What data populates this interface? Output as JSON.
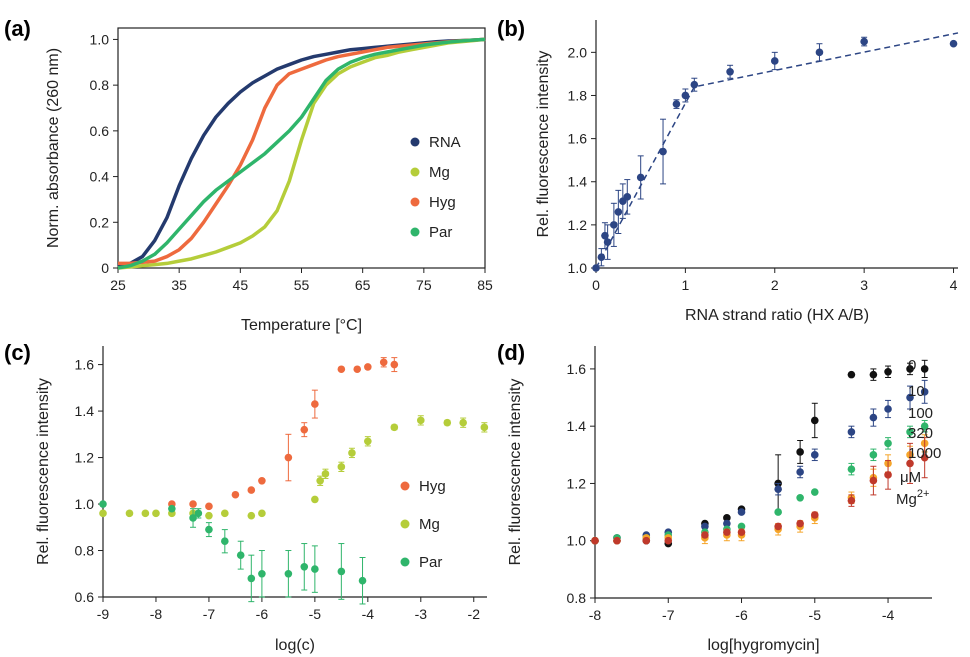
{
  "chart_data": [
    {
      "panel": "(a)",
      "type": "line",
      "xlabel": "Temperature [°C]",
      "ylabel": "Norm. absorbance (260 nm)",
      "xlim": [
        25,
        85
      ],
      "ylim": [
        0,
        1.05
      ],
      "xticks": [
        25,
        35,
        45,
        55,
        65,
        75,
        85
      ],
      "yticks": [
        0,
        0.2,
        0.4,
        0.6,
        0.8,
        1.0
      ],
      "ytick_labels": [
        "0",
        "0.2",
        "0.4",
        "0.6",
        "0.8",
        "1.0"
      ],
      "grid": false,
      "legend_position": "right",
      "series": [
        {
          "name": "RNA",
          "color": "#243a6e",
          "x": [
            25,
            27,
            29,
            31,
            33,
            35,
            37,
            39,
            41,
            43,
            45,
            47,
            49,
            51,
            53,
            55,
            57,
            59,
            61,
            63,
            65,
            67,
            69,
            71,
            73,
            75,
            77,
            79,
            81,
            83,
            85
          ],
          "y": [
            0.01,
            0.02,
            0.05,
            0.12,
            0.22,
            0.36,
            0.48,
            0.58,
            0.66,
            0.72,
            0.77,
            0.81,
            0.84,
            0.87,
            0.89,
            0.91,
            0.925,
            0.935,
            0.945,
            0.955,
            0.96,
            0.965,
            0.97,
            0.975,
            0.98,
            0.985,
            0.99,
            0.993,
            0.995,
            0.997,
            1.0
          ]
        },
        {
          "name": "Mg",
          "color": "#b5cd3a",
          "x": [
            25,
            27,
            29,
            31,
            33,
            35,
            37,
            39,
            41,
            43,
            45,
            47,
            49,
            51,
            53,
            55,
            57,
            59,
            61,
            63,
            65,
            67,
            69,
            71,
            73,
            75,
            77,
            79,
            81,
            83,
            85
          ],
          "y": [
            0.0,
            0.005,
            0.01,
            0.015,
            0.02,
            0.03,
            0.04,
            0.055,
            0.07,
            0.09,
            0.11,
            0.14,
            0.18,
            0.25,
            0.38,
            0.56,
            0.72,
            0.8,
            0.85,
            0.88,
            0.9,
            0.92,
            0.93,
            0.945,
            0.955,
            0.965,
            0.975,
            0.985,
            0.99,
            0.995,
            1.0
          ]
        },
        {
          "name": "Hyg",
          "color": "#ee6a3e",
          "x": [
            25,
            27,
            29,
            31,
            33,
            35,
            37,
            39,
            41,
            43,
            45,
            47,
            49,
            51,
            53,
            55,
            57,
            59,
            61,
            63,
            65,
            67,
            69,
            71,
            73,
            75,
            77,
            79,
            81,
            83,
            85
          ],
          "y": [
            0.02,
            0.02,
            0.025,
            0.03,
            0.05,
            0.08,
            0.13,
            0.2,
            0.28,
            0.36,
            0.45,
            0.56,
            0.7,
            0.8,
            0.85,
            0.87,
            0.89,
            0.91,
            0.925,
            0.935,
            0.945,
            0.955,
            0.965,
            0.97,
            0.975,
            0.98,
            0.985,
            0.99,
            0.994,
            0.997,
            1.0
          ]
        },
        {
          "name": "Par",
          "color": "#2fb56b",
          "x": [
            25,
            27,
            29,
            31,
            33,
            35,
            37,
            39,
            41,
            43,
            45,
            47,
            49,
            51,
            53,
            55,
            57,
            59,
            61,
            63,
            65,
            67,
            69,
            71,
            73,
            75,
            77,
            79,
            81,
            83,
            85
          ],
          "y": [
            0.0,
            0.01,
            0.03,
            0.06,
            0.11,
            0.17,
            0.23,
            0.29,
            0.34,
            0.38,
            0.42,
            0.46,
            0.5,
            0.55,
            0.6,
            0.66,
            0.74,
            0.82,
            0.87,
            0.9,
            0.92,
            0.935,
            0.945,
            0.955,
            0.965,
            0.975,
            0.982,
            0.988,
            0.993,
            0.997,
            1.0
          ]
        }
      ]
    },
    {
      "panel": "(b)",
      "type": "scatter",
      "xlabel": "RNA strand ratio (HX A/B)",
      "ylabel": "Rel. fluorescence intensity",
      "xlim": [
        0,
        4.05
      ],
      "ylim": [
        1.0,
        2.15
      ],
      "xticks": [
        0,
        1,
        2,
        3,
        4
      ],
      "yticks": [
        1.0,
        1.2,
        1.4,
        1.6,
        1.8,
        2.0
      ],
      "ytick_labels": [
        "1.0",
        "1.2",
        "1.4",
        "1.6",
        "1.8",
        "2.0"
      ],
      "grid": false,
      "series": [
        {
          "name": "",
          "color": "#2c4584",
          "x": [
            0,
            0.06,
            0.1,
            0.13,
            0.2,
            0.25,
            0.3,
            0.35,
            0.5,
            0.75,
            0.9,
            1.0,
            1.1,
            1.5,
            2.0,
            2.5,
            3.0,
            4.0
          ],
          "y": [
            1.0,
            1.05,
            1.15,
            1.12,
            1.2,
            1.26,
            1.31,
            1.33,
            1.42,
            1.54,
            1.76,
            1.8,
            1.85,
            1.91,
            1.96,
            2.0,
            2.05,
            2.04
          ],
          "err": [
            0,
            0.04,
            0.06,
            0.08,
            0.1,
            0.1,
            0.08,
            0.08,
            0.1,
            0.15,
            0.02,
            0.03,
            0.03,
            0.03,
            0.04,
            0.04,
            0.02,
            0
          ]
        }
      ],
      "fit_line": {
        "x": [
          0,
          1.1,
          4.05
        ],
        "y": [
          1.0,
          1.84,
          2.09
        ]
      }
    },
    {
      "panel": "(c)",
      "type": "scatter",
      "xlabel": "log(c)",
      "ylabel": "Rel. fluorescence intensity",
      "xlim": [
        -9,
        -1.75
      ],
      "ylim": [
        0.6,
        1.68
      ],
      "xticks": [
        -9,
        -8,
        -7,
        -6,
        -5,
        -4,
        -3,
        -2
      ],
      "yticks": [
        0.6,
        0.8,
        1.0,
        1.2,
        1.4,
        1.6
      ],
      "ytick_labels": [
        "0.6",
        "0.8",
        "1.0",
        "1.2",
        "1.4",
        "1.6"
      ],
      "grid": false,
      "legend_position": "right",
      "series": [
        {
          "name": "Hyg",
          "color": "#ee6a3e",
          "x": [
            -7.7,
            -7.3,
            -7.0,
            -6.5,
            -6.2,
            -6.0,
            -5.5,
            -5.2,
            -5.0,
            -4.5,
            -4.2,
            -4.0,
            -3.7,
            -3.5
          ],
          "y": [
            1.0,
            1.0,
            0.99,
            1.04,
            1.06,
            1.1,
            1.2,
            1.32,
            1.43,
            1.58,
            1.58,
            1.59,
            1.61,
            1.6
          ],
          "err": [
            0,
            0,
            0,
            0,
            0,
            0,
            0.1,
            0.03,
            0.06,
            0,
            0,
            0,
            0.02,
            0.03
          ]
        },
        {
          "name": "Mg",
          "color": "#b5cd3a",
          "x": [
            -9.0,
            -8.5,
            -8.2,
            -8.0,
            -7.7,
            -7.3,
            -7.0,
            -6.7,
            -6.2,
            -6.0,
            -5.0,
            -4.9,
            -4.8,
            -4.5,
            -4.3,
            -4.0,
            -3.5,
            -3.0,
            -2.5,
            -2.2,
            -1.8
          ],
          "y": [
            0.96,
            0.96,
            0.96,
            0.96,
            0.96,
            0.96,
            0.95,
            0.96,
            0.95,
            0.96,
            1.02,
            1.1,
            1.13,
            1.16,
            1.22,
            1.27,
            1.33,
            1.36,
            1.35,
            1.35,
            1.33
          ],
          "err": [
            0,
            0,
            0,
            0,
            0,
            0,
            0,
            0,
            0,
            0,
            0,
            0.02,
            0.02,
            0.02,
            0.02,
            0.02,
            0.01,
            0.02,
            0.01,
            0.02,
            0.02
          ]
        },
        {
          "name": "Par",
          "color": "#2fb56b",
          "x": [
            -9.0,
            -7.7,
            -7.3,
            -7.2,
            -7.0,
            -6.7,
            -6.4,
            -6.2,
            -6.0,
            -5.5,
            -5.2,
            -5.0,
            -4.5,
            -4.1
          ],
          "y": [
            1.0,
            0.98,
            0.94,
            0.96,
            0.89,
            0.84,
            0.78,
            0.68,
            0.7,
            0.7,
            0.73,
            0.72,
            0.71,
            0.67
          ],
          "err": [
            0,
            0,
            0.04,
            0.02,
            0.03,
            0.05,
            0.06,
            0.1,
            0.1,
            0.1,
            0.1,
            0.1,
            0.12,
            0.1
          ]
        }
      ]
    },
    {
      "panel": "(d)",
      "type": "scatter",
      "xlabel": "log[hygromycin]",
      "ylabel": "Rel. fluorescence intensity",
      "xlim": [
        -8,
        -3.4
      ],
      "ylim": [
        0.8,
        1.68
      ],
      "xticks": [
        -8,
        -7,
        -6,
        -5,
        -4
      ],
      "yticks": [
        0.8,
        1.0,
        1.2,
        1.4,
        1.6
      ],
      "ytick_labels": [
        "0.8",
        "1.0",
        "1.2",
        "1.4",
        "1.6"
      ],
      "grid": false,
      "legend_position": "right",
      "legend_annotations": [
        "μM",
        "Mg2+"
      ],
      "series": [
        {
          "name": "0",
          "color": "#111111",
          "x": [
            -8.0,
            -7.7,
            -7.3,
            -7.0,
            -6.5,
            -6.2,
            -6.0,
            -5.5,
            -5.2,
            -5.0,
            -4.5,
            -4.2,
            -4.0,
            -3.7,
            -3.5
          ],
          "y": [
            1.0,
            1.0,
            1.0,
            0.99,
            1.06,
            1.08,
            1.11,
            1.2,
            1.31,
            1.42,
            1.58,
            1.58,
            1.59,
            1.6,
            1.6
          ],
          "err": [
            0,
            0,
            0,
            0,
            0,
            0,
            0,
            0.1,
            0.04,
            0.06,
            0,
            0.02,
            0.02,
            0.02,
            0.03
          ]
        },
        {
          "name": "10",
          "color": "#2c4584",
          "x": [
            -8.0,
            -7.7,
            -7.3,
            -7.0,
            -6.5,
            -6.2,
            -6.0,
            -5.5,
            -5.2,
            -5.0,
            -4.5,
            -4.2,
            -4.0,
            -3.7,
            -3.5
          ],
          "y": [
            1.0,
            1.01,
            1.02,
            1.03,
            1.05,
            1.06,
            1.1,
            1.18,
            1.24,
            1.3,
            1.38,
            1.43,
            1.46,
            1.5,
            1.52
          ],
          "err": [
            0,
            0,
            0,
            0,
            0,
            0,
            0,
            0.02,
            0.02,
            0.02,
            0.02,
            0.03,
            0.03,
            0.04,
            0.04
          ]
        },
        {
          "name": "100",
          "color": "#2fb56b",
          "x": [
            -8.0,
            -7.7,
            -7.3,
            -7.0,
            -6.5,
            -6.2,
            -6.0,
            -5.5,
            -5.2,
            -5.0,
            -4.5,
            -4.2,
            -4.0,
            -3.7,
            -3.5
          ],
          "y": [
            1.0,
            1.01,
            1.01,
            1.02,
            1.03,
            1.04,
            1.05,
            1.1,
            1.15,
            1.17,
            1.25,
            1.3,
            1.34,
            1.38,
            1.4
          ],
          "err": [
            0,
            0,
            0,
            0,
            0,
            0,
            0,
            0,
            0,
            0,
            0.02,
            0.02,
            0.02,
            0.02,
            0.02
          ]
        },
        {
          "name": "320",
          "color": "#f5a52a",
          "x": [
            -8.0,
            -7.7,
            -7.3,
            -7.0,
            -6.5,
            -6.2,
            -6.0,
            -5.5,
            -5.2,
            -5.0,
            -4.5,
            -4.2,
            -4.0,
            -3.7,
            -3.5
          ],
          "y": [
            1.0,
            1.0,
            1.01,
            1.01,
            1.01,
            1.02,
            1.02,
            1.04,
            1.05,
            1.08,
            1.15,
            1.22,
            1.27,
            1.3,
            1.34
          ],
          "err": [
            0,
            0,
            0,
            0,
            0.02,
            0.02,
            0.02,
            0.02,
            0.02,
            0.02,
            0.02,
            0.03,
            0.03,
            0.03,
            0.03
          ]
        },
        {
          "name": "1000",
          "color": "#c0392b",
          "x": [
            -8.0,
            -7.7,
            -7.3,
            -7.0,
            -6.5,
            -6.2,
            -6.0,
            -5.5,
            -5.2,
            -5.0,
            -4.5,
            -4.2,
            -4.0,
            -3.7,
            -3.5
          ],
          "y": [
            1.0,
            1.0,
            1.0,
            1.0,
            1.02,
            1.03,
            1.03,
            1.05,
            1.06,
            1.09,
            1.14,
            1.21,
            1.23,
            1.27,
            1.29
          ],
          "err": [
            0,
            0,
            0,
            0,
            0,
            0,
            0,
            0,
            0,
            0,
            0.02,
            0.05,
            0.05,
            0.07,
            0.07
          ]
        }
      ]
    }
  ]
}
